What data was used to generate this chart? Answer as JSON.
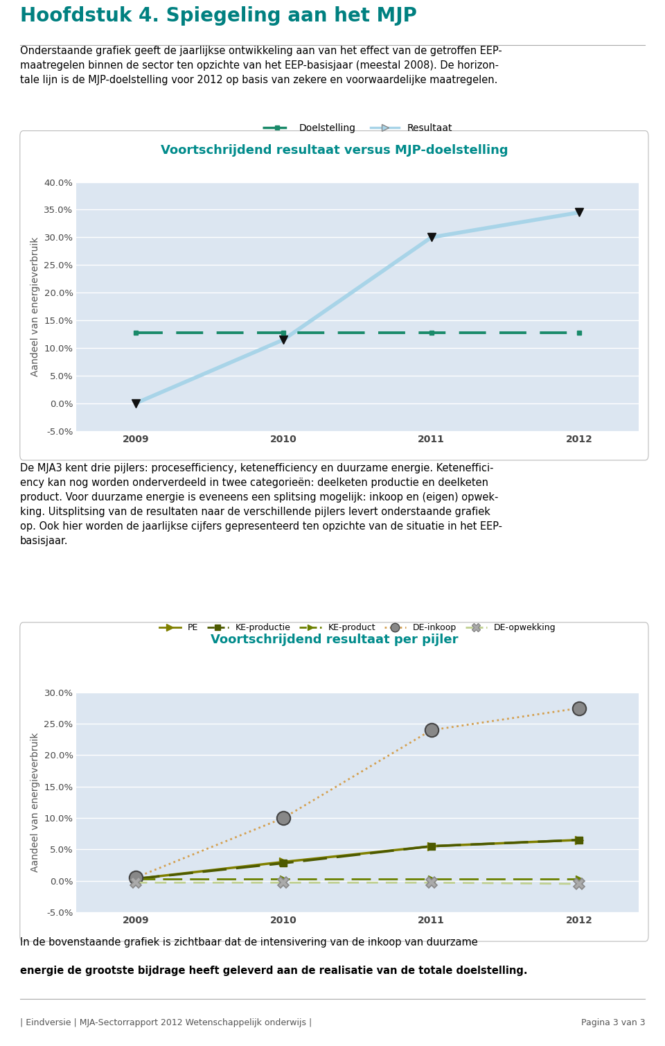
{
  "title_heading": "Hoofdstuk 4. Spiegeling aan het MJP",
  "intro_text": "Onderstaande grafiek geeft de jaarlijkse ontwikkeling aan van het effect van de getroffen EEP-\nmaatregelen binnen de sector ten opzichte van het EEP-basisjaar (meestal 2008). De horizon-\ntale lijn is de MJP-doelstelling voor 2012 op basis van zekere en voorwaardelijke maatregelen.",
  "chart1_title": "Voortschrijdend resultaat versus MJP-doelstelling",
  "chart1_legend": [
    "Doelstelling",
    "Resultaat"
  ],
  "chart1_years": [
    2009,
    2010,
    2011,
    2012
  ],
  "chart1_doelstelling": [
    12.8,
    12.8,
    12.8,
    12.8
  ],
  "chart1_resultaat": [
    0.0,
    11.5,
    30.0,
    34.5
  ],
  "chart1_ylim": [
    -5.0,
    40.0
  ],
  "chart1_yticks": [
    -5.0,
    0.0,
    5.0,
    10.0,
    15.0,
    20.0,
    25.0,
    30.0,
    35.0,
    40.0
  ],
  "chart1_ylabel": "Aandeel van energieverbruik",
  "chart1_color_doelstelling": "#1a8a6a",
  "chart1_color_resultaat": "#a8d4e8",
  "chart1_bg": "#dce6f1",
  "mid_text1": "De MJA3 kent drie pijlers: procesefficiency, ketenefficiency en duurzame energie. Keteneffici-\nency kan nog worden onderverdeeld in twee categorieën: deelketen productie en deelketen\nproduct. Voor duurzame energie is eveneens een splitsing mogelijk: inkoop en (eigen) opwek-\nking. Uitsplitsing van de resultaten naar de verschillende pijlers levert onderstaande grafiek\nop. Ook hier worden de jaarlijkse cijfers gepresenteerd ten opzichte van de situatie in het EEP-\nbasisjaar.",
  "chart2_title": "Voortschrijdend resultaat per pijler",
  "chart2_legend": [
    "PE",
    "KE-productie",
    "KE-product",
    "DE-inkoop",
    "DE-opwekking"
  ],
  "chart2_years": [
    2009,
    2010,
    2011,
    2012
  ],
  "chart2_PE": [
    0.3,
    3.0,
    5.5,
    6.5
  ],
  "chart2_KE_productie": [
    0.3,
    2.8,
    5.5,
    6.5
  ],
  "chart2_KE_product": [
    0.3,
    0.3,
    0.3,
    0.3
  ],
  "chart2_DE_inkoop": [
    0.5,
    10.0,
    24.0,
    27.5
  ],
  "chart2_DE_opwekking": [
    -0.3,
    -0.3,
    -0.3,
    -0.5
  ],
  "chart2_ylim": [
    -5.0,
    30.0
  ],
  "chart2_yticks": [
    -5.0,
    0.0,
    5.0,
    10.0,
    15.0,
    20.0,
    25.0,
    30.0
  ],
  "chart2_ylabel": "Aandeel van energieverbruik",
  "chart2_bg": "#dce6f1",
  "chart2_color_PE": "#808000",
  "chart2_color_KE_productie": "#4d5a00",
  "chart2_color_KE_product": "#6b8000",
  "chart2_color_DE_inkoop": "#d4a050",
  "chart2_color_DE_opwekking": "#c0d090",
  "footer_text": "| Eindversie | MJA-Sectorrapport 2012 Wetenschappelijk onderwijs |",
  "footer_page": "Pagina 3 van 3",
  "bot_text_line1": "In de bovenstaande grafiek is zichtbaar dat de intensivering van de inkoop van duurzame",
  "bot_text_line2": "energie de grootste bijdrage heeft geleverd aan de realisatie van de totale doelstelling.",
  "teal_color": "#008b8b",
  "heading_color": "#008080"
}
